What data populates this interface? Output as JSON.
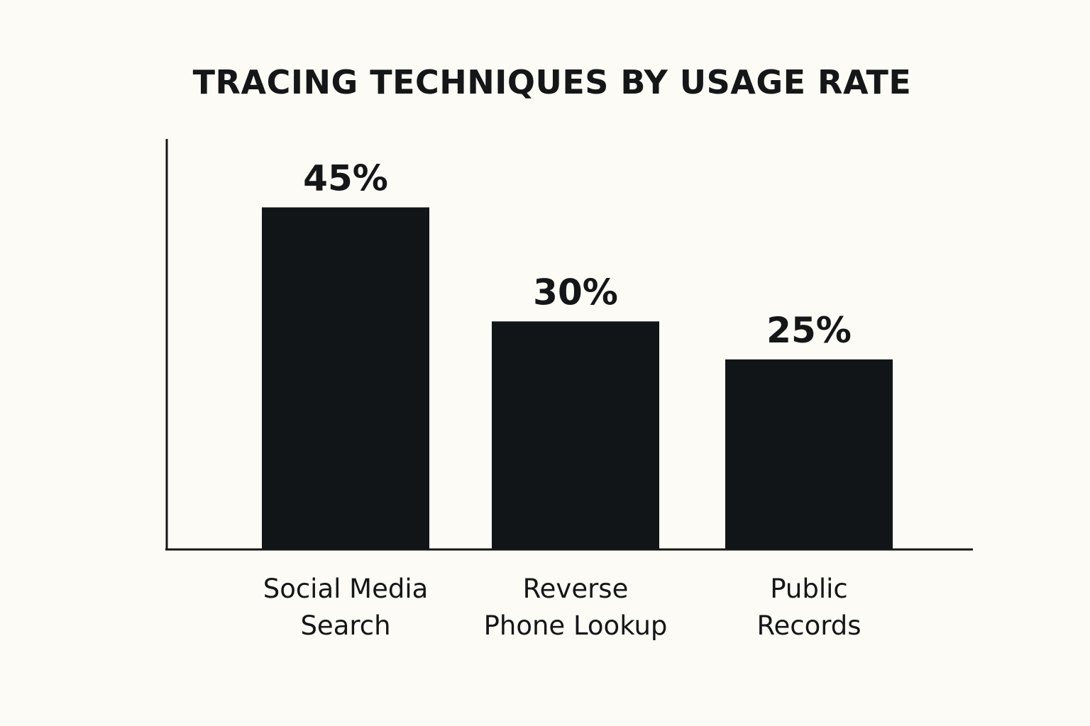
{
  "chart_data": {
    "type": "bar",
    "title": "TRACING TECHNIQUES BY USAGE RATE",
    "categories": [
      [
        "Social Media",
        "Search"
      ],
      [
        "Reverse",
        "Phone Lookup"
      ],
      [
        "Public",
        "Records"
      ]
    ],
    "values": [
      45,
      30,
      25
    ],
    "value_labels": [
      "45%",
      "30%",
      "25%"
    ],
    "unit": "%",
    "xlabel": "",
    "ylabel": "",
    "ylim": [
      0,
      54
    ],
    "grid": false,
    "legend": "none",
    "colors": {
      "bar": "#121517",
      "background": "#fcfbf6",
      "text": "#141617",
      "axis": "#141617"
    }
  }
}
